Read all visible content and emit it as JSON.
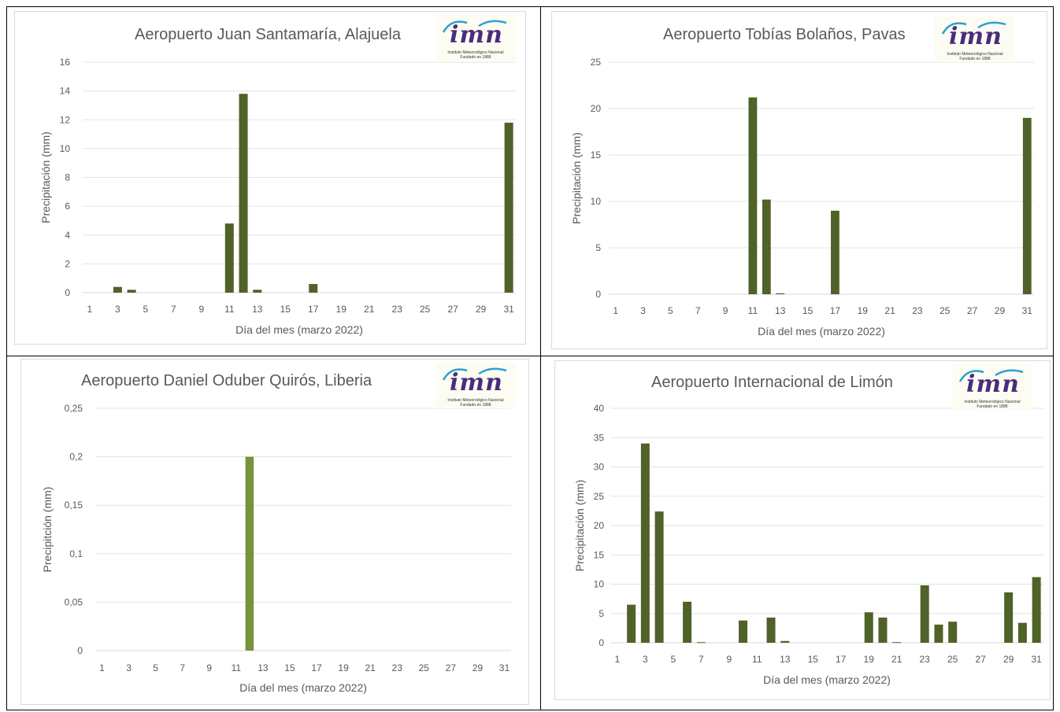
{
  "logo": {
    "brand": "imn",
    "line1": "Instituto Meteorológico Nacional",
    "line2": "Fundado en 1888"
  },
  "chart_data": [
    {
      "type": "bar",
      "title": "Aeropuerto Juan Santamaría, Alajuela",
      "xlabel": "Día del mes  (marzo 2022)",
      "ylabel": "Precipitación (mm)",
      "ylim": [
        0,
        16
      ],
      "yticks": [
        "0",
        "2",
        "4",
        "6",
        "8",
        "10",
        "12",
        "14",
        "16"
      ],
      "ytick_values": [
        0,
        2,
        4,
        6,
        8,
        10,
        12,
        14,
        16
      ],
      "bar_color": "#4f6228",
      "x": [
        1,
        2,
        3,
        4,
        5,
        6,
        7,
        8,
        9,
        10,
        11,
        12,
        13,
        14,
        15,
        16,
        17,
        18,
        19,
        20,
        21,
        22,
        23,
        24,
        25,
        26,
        27,
        28,
        29,
        30,
        31
      ],
      "values": [
        0,
        0,
        0.4,
        0.2,
        0,
        0,
        0,
        0,
        0,
        0,
        4.8,
        13.8,
        0.2,
        0,
        0,
        0,
        0.6,
        0,
        0,
        0,
        0,
        0,
        0,
        0,
        0,
        0,
        0,
        0,
        0,
        0,
        11.8
      ]
    },
    {
      "type": "bar",
      "title": "Aeropuerto Tobías Bolaños, Pavas",
      "xlabel": "Día del mes  (marzo 2022)",
      "ylabel": "Precipitación (mm)",
      "ylim": [
        0,
        25
      ],
      "yticks": [
        "0",
        "5",
        "10",
        "15",
        "20",
        "25"
      ],
      "ytick_values": [
        0,
        5,
        10,
        15,
        20,
        25
      ],
      "bar_color": "#4f6228",
      "x": [
        1,
        2,
        3,
        4,
        5,
        6,
        7,
        8,
        9,
        10,
        11,
        12,
        13,
        14,
        15,
        16,
        17,
        18,
        19,
        20,
        21,
        22,
        23,
        24,
        25,
        26,
        27,
        28,
        29,
        30,
        31
      ],
      "values": [
        0,
        0,
        0,
        0,
        0,
        0,
        0,
        0,
        0,
        0,
        21.2,
        10.2,
        0.1,
        0,
        0,
        0,
        9,
        0,
        0,
        0,
        0,
        0,
        0,
        0,
        0,
        0,
        0,
        0,
        0,
        0,
        19
      ]
    },
    {
      "type": "bar",
      "title": "Aeropuerto Daniel Oduber Quirós, Liberia",
      "xlabel": "Día del mes  (marzo 2022)",
      "ylabel": "Precipitción (mm)",
      "ylim": [
        0,
        0.25
      ],
      "yticks": [
        "0",
        "0,05",
        "0,1",
        "0,15",
        "0,2",
        "0,25"
      ],
      "ytick_values": [
        0,
        0.05,
        0.1,
        0.15,
        0.2,
        0.25
      ],
      "bar_color": "#77933c",
      "x": [
        1,
        2,
        3,
        4,
        5,
        6,
        7,
        8,
        9,
        10,
        11,
        12,
        13,
        14,
        15,
        16,
        17,
        18,
        19,
        20,
        21,
        22,
        23,
        24,
        25,
        26,
        27,
        28,
        29,
        30,
        31
      ],
      "values": [
        0,
        0,
        0,
        0,
        0,
        0,
        0,
        0,
        0,
        0,
        0,
        0.2,
        0,
        0,
        0,
        0,
        0,
        0,
        0,
        0,
        0,
        0,
        0,
        0,
        0,
        0,
        0,
        0,
        0,
        0,
        0
      ]
    },
    {
      "type": "bar",
      "title": "Aeropuerto Internacional de Limón",
      "xlabel": "Día del mes  (marzo 2022)",
      "ylabel": "Precipitación (mm)",
      "ylim": [
        0,
        40
      ],
      "yticks": [
        "0",
        "5",
        "10",
        "15",
        "20",
        "25",
        "30",
        "35",
        "40"
      ],
      "ytick_values": [
        0,
        5,
        10,
        15,
        20,
        25,
        30,
        35,
        40
      ],
      "bar_color": "#4f6228",
      "x": [
        1,
        2,
        3,
        4,
        5,
        6,
        7,
        8,
        9,
        10,
        11,
        12,
        13,
        14,
        15,
        16,
        17,
        18,
        19,
        20,
        21,
        22,
        23,
        24,
        25,
        26,
        27,
        28,
        29,
        30,
        31
      ],
      "values": [
        0,
        6.5,
        34,
        22.4,
        0,
        7,
        0.1,
        0,
        0,
        3.8,
        0,
        4.3,
        0.3,
        0,
        0,
        0,
        0,
        0,
        5.2,
        4.3,
        0.1,
        0,
        9.8,
        3.1,
        3.6,
        0,
        0,
        0,
        8.6,
        3.4,
        11.2
      ]
    }
  ]
}
